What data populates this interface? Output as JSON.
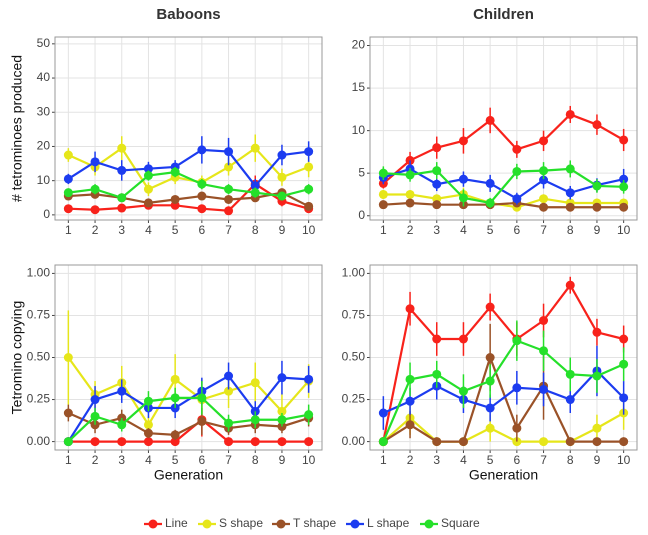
{
  "chart_data": [
    {
      "type": "line",
      "title": "Baboons",
      "ylabel": "# tetrominoes produced",
      "x": [
        1,
        2,
        3,
        4,
        5,
        6,
        7,
        8,
        9,
        10
      ],
      "xlim": [
        0.5,
        10.5
      ],
      "xticks": [
        1,
        2,
        3,
        4,
        5,
        6,
        7,
        8,
        9,
        10
      ],
      "ylim": [
        -1.5,
        52
      ],
      "yticks": [
        0,
        10,
        20,
        30,
        40,
        50
      ],
      "grid": true,
      "series": [
        {
          "name": "Line",
          "color": "#f8221b",
          "values": [
            1.8,
            1.5,
            2,
            2.8,
            2.8,
            1.8,
            1.2,
            9,
            4,
            1.8
          ],
          "errors": [
            0.5,
            0.5,
            0.6,
            0.8,
            0.8,
            0.6,
            0.5,
            2.5,
            1.5,
            0.6
          ]
        },
        {
          "name": "S shape",
          "color": "#e6e61a",
          "values": [
            17.5,
            14,
            19.5,
            7.5,
            11,
            9.5,
            14,
            19.5,
            11,
            14
          ],
          "errors": [
            2,
            2.5,
            3.5,
            2,
            2,
            2,
            2.5,
            4,
            2.5,
            3
          ]
        },
        {
          "name": "T shape",
          "color": "#9a5228",
          "values": [
            5.5,
            6,
            5,
            3.5,
            4.5,
            5.5,
            4.5,
            5,
            6.5,
            2.5
          ],
          "errors": [
            1,
            1,
            1,
            1,
            1,
            1,
            1,
            1,
            1,
            1
          ]
        },
        {
          "name": "L shape",
          "color": "#1c3cf0",
          "values": [
            10.5,
            15.5,
            13,
            13.5,
            14,
            19,
            18.5,
            8.5,
            17.5,
            18.5
          ],
          "errors": [
            1.5,
            3,
            3,
            2,
            2,
            4,
            4,
            2,
            3,
            3
          ]
        },
        {
          "name": "Square",
          "color": "#25e02a",
          "values": [
            6.5,
            7.5,
            5,
            11.5,
            12.5,
            9,
            7.5,
            6.5,
            5.5,
            7.5
          ],
          "errors": [
            1,
            1.5,
            1,
            1.5,
            1.5,
            1.5,
            1.5,
            1.5,
            1,
            1.5
          ]
        }
      ]
    },
    {
      "type": "line",
      "title": "Children",
      "x": [
        1,
        2,
        3,
        4,
        5,
        6,
        7,
        8,
        9,
        10
      ],
      "xlim": [
        0.5,
        10.5
      ],
      "xticks": [
        1,
        2,
        3,
        4,
        5,
        6,
        7,
        8,
        9,
        10
      ],
      "ylim": [
        -0.5,
        21
      ],
      "yticks": [
        0,
        5,
        10,
        15,
        20
      ],
      "grid": true,
      "series": [
        {
          "name": "Line",
          "color": "#f8221b",
          "values": [
            3.8,
            6.5,
            8,
            8.8,
            11.2,
            7.8,
            8.8,
            11.9,
            10.7,
            8.9
          ],
          "errors": [
            0.6,
            1,
            1.3,
            1.5,
            1.5,
            1,
            1.2,
            1,
            1.2,
            1.3
          ]
        },
        {
          "name": "S shape",
          "color": "#e6e61a",
          "values": [
            2.5,
            2.5,
            2,
            2.5,
            1.5,
            1,
            2,
            1.5,
            1.5,
            1.5
          ],
          "errors": [
            0.5,
            0.5,
            0.5,
            0.8,
            0.5,
            0.5,
            0.5,
            0.5,
            0.5,
            0.5
          ]
        },
        {
          "name": "T shape",
          "color": "#9a5228",
          "values": [
            1.3,
            1.5,
            1.3,
            1.3,
            1.3,
            1.5,
            1,
            1,
            1,
            1
          ],
          "errors": [
            0.3,
            0.3,
            0.3,
            0.3,
            0.3,
            0.3,
            0.3,
            0.3,
            0.3,
            0.3
          ]
        },
        {
          "name": "L shape",
          "color": "#1c3cf0",
          "values": [
            4.5,
            5.5,
            3.7,
            4.3,
            3.8,
            2,
            4.2,
            2.7,
            3.6,
            4.3
          ],
          "errors": [
            0.8,
            1,
            0.8,
            0.9,
            1,
            0.7,
            1,
            0.8,
            0.8,
            1.2
          ]
        },
        {
          "name": "Square",
          "color": "#25e02a",
          "values": [
            5,
            4.8,
            5.3,
            2.1,
            1.5,
            5.2,
            5.3,
            5.5,
            3.5,
            3.4
          ],
          "errors": [
            0.8,
            0.8,
            1,
            1,
            0.6,
            0.9,
            1,
            1,
            0.8,
            0.8
          ]
        }
      ]
    },
    {
      "type": "line",
      "ylabel": "Tetromino copying",
      "xlabel": "Generation",
      "x": [
        1,
        2,
        3,
        4,
        5,
        6,
        7,
        8,
        9,
        10
      ],
      "xlim": [
        0.5,
        10.5
      ],
      "xticks": [
        1,
        2,
        3,
        4,
        5,
        6,
        7,
        8,
        9,
        10
      ],
      "ylim": [
        -0.05,
        1.05
      ],
      "yticks": [
        {
          "value": 0,
          "label": "0.00"
        },
        {
          "value": 0.25,
          "label": "0.25"
        },
        {
          "value": 0.5,
          "label": "0.50"
        },
        {
          "value": 0.75,
          "label": "0.75"
        },
        {
          "value": 1,
          "label": "1.00"
        }
      ],
      "grid": true,
      "series": [
        {
          "name": "Line",
          "color": "#f8221b",
          "values": [
            0,
            0,
            0,
            0,
            0,
            0.13,
            0,
            0,
            0,
            0
          ],
          "errors": [
            0,
            0,
            0,
            0,
            0,
            0.1,
            0,
            0,
            0,
            0
          ]
        },
        {
          "name": "S shape",
          "color": "#e6e61a",
          "values": [
            0.5,
            0.28,
            0.35,
            0.1,
            0.37,
            0.25,
            0.3,
            0.35,
            0.18,
            0.36
          ],
          "errors": [
            0.28,
            0.08,
            0.1,
            0.05,
            0.15,
            0.12,
            0.1,
            0.12,
            0.1,
            0.1
          ]
        },
        {
          "name": "T shape",
          "color": "#9a5228",
          "values": [
            0.17,
            0.1,
            0.14,
            0.05,
            0.04,
            0.12,
            0.08,
            0.1,
            0.09,
            0.14
          ],
          "errors": [
            0.05,
            0.05,
            0.05,
            0.03,
            0.03,
            0.08,
            0.04,
            0.05,
            0.04,
            0.05
          ]
        },
        {
          "name": "L shape",
          "color": "#1c3cf0",
          "values": [
            0,
            0.25,
            0.3,
            0.2,
            0.2,
            0.3,
            0.39,
            0.18,
            0.38,
            0.37
          ],
          "errors": [
            0,
            0.08,
            0.07,
            0.06,
            0.06,
            0.08,
            0.08,
            0.06,
            0.1,
            0.08
          ]
        },
        {
          "name": "Square",
          "color": "#25e02a",
          "values": [
            0,
            0.15,
            0.1,
            0.24,
            0.26,
            0.26,
            0.11,
            0.13,
            0.13,
            0.16
          ],
          "errors": [
            0,
            0.05,
            0.04,
            0.06,
            0.06,
            0.1,
            0.05,
            0.05,
            0.04,
            0.06
          ]
        }
      ]
    },
    {
      "type": "line",
      "xlabel": "Generation",
      "x": [
        1,
        2,
        3,
        4,
        5,
        6,
        7,
        8,
        9,
        10
      ],
      "xlim": [
        0.5,
        10.5
      ],
      "xticks": [
        1,
        2,
        3,
        4,
        5,
        6,
        7,
        8,
        9,
        10
      ],
      "ylim": [
        -0.05,
        1.05
      ],
      "yticks": [
        {
          "value": 0,
          "label": "0.00"
        },
        {
          "value": 0.25,
          "label": "0.25"
        },
        {
          "value": 0.5,
          "label": "0.50"
        },
        {
          "value": 0.75,
          "label": "0.75"
        },
        {
          "value": 1,
          "label": "1.00"
        }
      ],
      "grid": true,
      "series": [
        {
          "name": "Line",
          "color": "#f8221b",
          "values": [
            0,
            0.79,
            0.61,
            0.61,
            0.8,
            0.61,
            0.72,
            0.93,
            0.65,
            0.61
          ],
          "errors": [
            0,
            0.1,
            0.1,
            0.1,
            0.08,
            0.1,
            0.1,
            0.05,
            0.08,
            0.08
          ]
        },
        {
          "name": "S shape",
          "color": "#e6e61a",
          "values": [
            0,
            0.14,
            0,
            0,
            0.08,
            0,
            0,
            0,
            0.08,
            0.17
          ],
          "errors": [
            0,
            0.1,
            0,
            0,
            0.08,
            0,
            0,
            0,
            0.08,
            0.1
          ]
        },
        {
          "name": "T shape",
          "color": "#9a5228",
          "values": [
            0,
            0.1,
            0,
            0,
            0.5,
            0.08,
            0.33,
            0,
            0,
            0
          ],
          "errors": [
            0,
            0.08,
            0,
            0,
            0.2,
            0.08,
            0.2,
            0,
            0,
            0
          ]
        },
        {
          "name": "L shape",
          "color": "#1c3cf0",
          "values": [
            0.17,
            0.24,
            0.33,
            0.25,
            0.2,
            0.32,
            0.31,
            0.25,
            0.42,
            0.26
          ],
          "errors": [
            0.1,
            0.08,
            0.08,
            0.08,
            0.08,
            0.1,
            0.1,
            0.08,
            0.15,
            0.1
          ]
        },
        {
          "name": "Square",
          "color": "#25e02a",
          "values": [
            0,
            0.37,
            0.4,
            0.3,
            0.36,
            0.6,
            0.54,
            0.4,
            0.39,
            0.46
          ],
          "errors": [
            0,
            0.1,
            0.08,
            0.1,
            0.1,
            0.12,
            0.12,
            0.1,
            0.1,
            0.1
          ]
        }
      ]
    }
  ]
}
